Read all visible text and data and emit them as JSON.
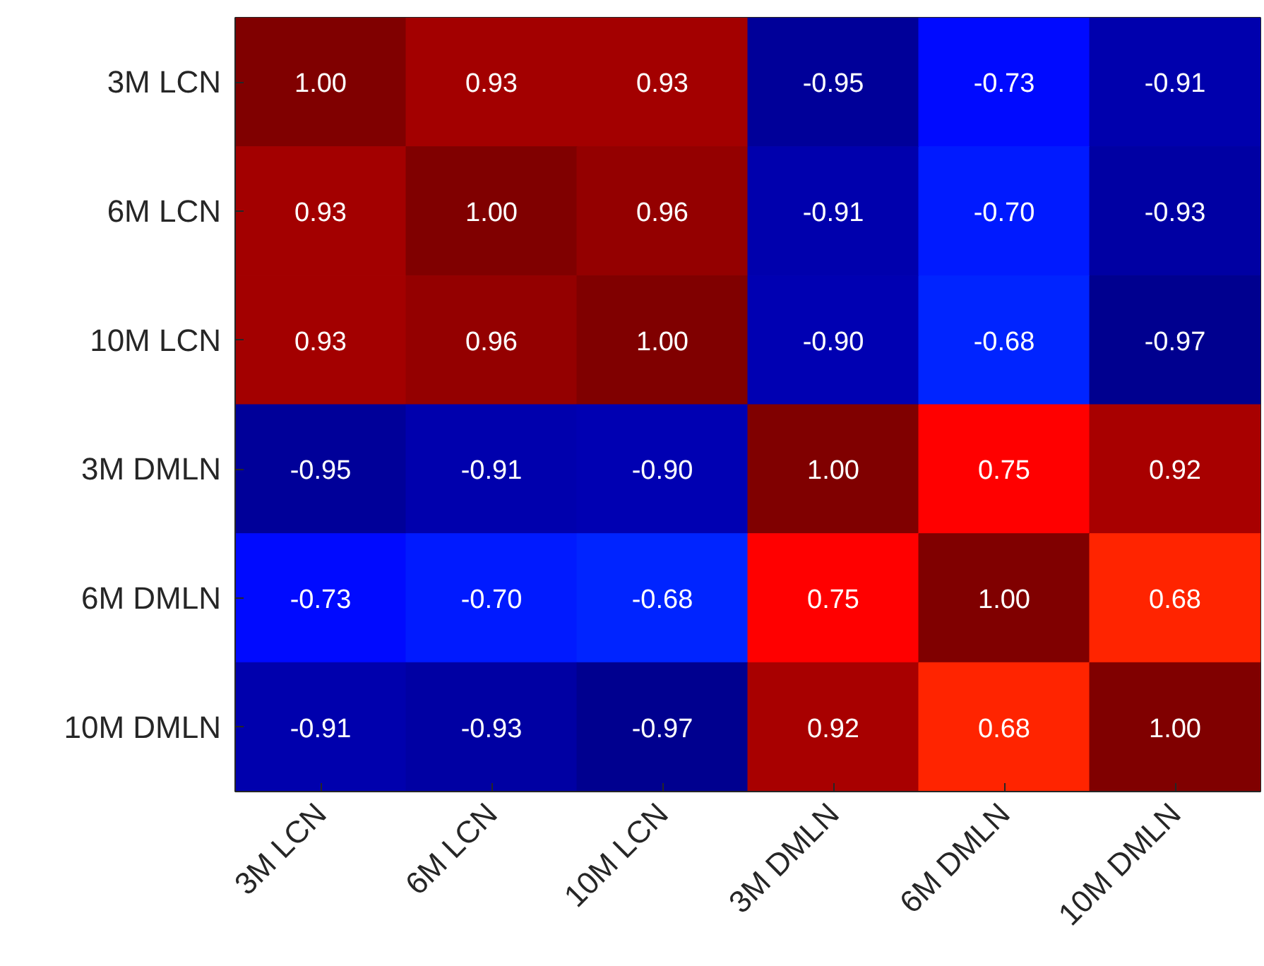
{
  "chart_data": {
    "type": "heatmap",
    "categories": [
      "3M LCN",
      "6M LCN",
      "10M LCN",
      "3M DMLN",
      "6M DMLN",
      "10M DMLN"
    ],
    "y_categories": [
      "3M LCN",
      "6M LCN",
      "10M LCN",
      "3M DMLN",
      "6M DMLN",
      "10M DMLN"
    ],
    "cells": [
      [
        1.0,
        0.93,
        0.93,
        -0.95,
        -0.73,
        -0.91
      ],
      [
        0.93,
        1.0,
        0.96,
        -0.91,
        -0.7,
        -0.93
      ],
      [
        0.93,
        0.96,
        1.0,
        -0.9,
        -0.68,
        -0.97
      ],
      [
        -0.95,
        -0.91,
        -0.9,
        1.0,
        0.75,
        0.92
      ],
      [
        -0.73,
        -0.7,
        -0.68,
        0.75,
        1.0,
        0.68
      ],
      [
        -0.91,
        -0.93,
        -0.97,
        0.92,
        0.68,
        1.0
      ]
    ],
    "cell_labels": [
      [
        "1.00",
        "0.93",
        "0.93",
        "-0.95",
        "-0.73",
        "-0.91"
      ],
      [
        "0.93",
        "1.00",
        "0.96",
        "-0.91",
        "-0.70",
        "-0.93"
      ],
      [
        "0.93",
        "0.96",
        "1.00",
        "-0.90",
        "-0.68",
        "-0.97"
      ],
      [
        "-0.95",
        "-0.91",
        "-0.90",
        "1.00",
        "0.75",
        "0.92"
      ],
      [
        "-0.73",
        "-0.70",
        "-0.68",
        "0.75",
        "1.00",
        "0.68"
      ],
      [
        "-0.91",
        "-0.93",
        "-0.97",
        "0.92",
        "0.68",
        "1.00"
      ]
    ]
  }
}
